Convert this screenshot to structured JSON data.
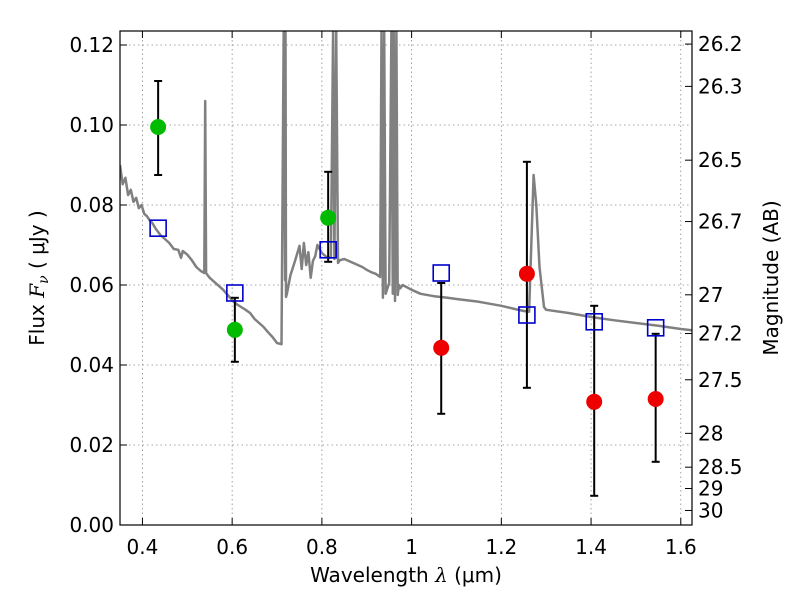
{
  "chart_data": {
    "type": "scatter",
    "title": "",
    "xlabel": {
      "prefix": "Wavelength  ",
      "symbol": "λ",
      "unit": " (μm)"
    },
    "ylabel": {
      "prefix": "Flux  ",
      "symbol": "F",
      "subscript": "ν",
      "unit": "  ( μJy )"
    },
    "y2label": "Magnitude (AB)",
    "xlim": [
      0.35,
      1.625
    ],
    "ylim": [
      0.0,
      0.1235
    ],
    "grid": true,
    "x_ticks": [
      {
        "value": 0.4,
        "label": "0.4"
      },
      {
        "value": 0.6,
        "label": "0.6"
      },
      {
        "value": 0.8,
        "label": "0.8"
      },
      {
        "value": 1.0,
        "label": "1"
      },
      {
        "value": 1.2,
        "label": "1.2"
      },
      {
        "value": 1.4,
        "label": "1.4"
      },
      {
        "value": 1.6,
        "label": "1.6"
      }
    ],
    "y_ticks": [
      {
        "value": 0.0,
        "label": "0.00"
      },
      {
        "value": 0.02,
        "label": "0.02"
      },
      {
        "value": 0.04,
        "label": "0.04"
      },
      {
        "value": 0.06,
        "label": "0.06"
      },
      {
        "value": 0.08,
        "label": "0.08"
      },
      {
        "value": 0.1,
        "label": "0.10"
      },
      {
        "value": 0.12,
        "label": "0.12"
      }
    ],
    "y2_ticks": [
      "26.2",
      "26.3",
      "26.5",
      "26.7",
      "27",
      "27.2",
      "27.5",
      "28",
      "28.5",
      "29",
      "30"
    ],
    "colors": {
      "model": "#808080",
      "green_points": "#00bb00",
      "red_points": "#ee0000",
      "model_boxes": "#0000cc",
      "error_bars": "#000000",
      "grid": "#8a8a8a"
    },
    "series": [
      {
        "kind": "measured-optical",
        "marker": "circle",
        "x": [
          0.435,
          0.606,
          0.814
        ],
        "y": [
          0.0995,
          0.0488,
          0.0768
        ],
        "yerr_low": [
          0.0875,
          0.0408,
          0.0658
        ],
        "yerr_high": [
          0.111,
          0.0568,
          0.0883
        ]
      },
      {
        "kind": "measured-nir",
        "marker": "circle",
        "x": [
          1.066,
          1.257,
          1.407,
          1.544
        ],
        "y": [
          0.0443,
          0.0628,
          0.0308,
          0.0315
        ],
        "yerr_low": [
          0.0278,
          0.0343,
          0.0073,
          0.0158
        ],
        "yerr_high": [
          0.0605,
          0.0908,
          0.0548,
          0.0478
        ]
      },
      {
        "kind": "model-photometry",
        "marker": "square",
        "x": [
          0.435,
          0.606,
          0.814,
          1.066,
          1.257,
          1.407,
          1.544
        ],
        "y": [
          0.0742,
          0.058,
          0.0688,
          0.063,
          0.0525,
          0.0508,
          0.0493
        ]
      },
      {
        "kind": "model-spectrum",
        "marker": "line",
        "x": [
          0.35,
          0.356,
          0.362,
          0.368,
          0.374,
          0.38,
          0.386,
          0.392,
          0.398,
          0.404,
          0.41,
          0.416,
          0.422,
          0.43,
          0.44,
          0.45,
          0.46,
          0.47,
          0.48,
          0.486,
          0.49,
          0.5,
          0.51,
          0.52,
          0.53,
          0.538,
          0.54,
          0.542,
          0.545,
          0.55,
          0.56,
          0.57,
          0.58,
          0.59,
          0.6,
          0.61,
          0.62,
          0.63,
          0.64,
          0.65,
          0.66,
          0.67,
          0.68,
          0.69,
          0.7,
          0.71,
          0.715,
          0.718,
          0.719,
          0.72,
          0.722,
          0.73,
          0.74,
          0.75,
          0.755,
          0.76,
          0.765,
          0.77,
          0.775,
          0.78,
          0.785,
          0.79,
          0.8,
          0.81,
          0.82,
          0.825,
          0.828,
          0.832,
          0.836,
          0.84,
          0.85,
          0.86,
          0.87,
          0.88,
          0.89,
          0.9,
          0.91,
          0.92,
          0.93,
          0.933,
          0.936,
          0.939,
          0.942,
          0.95,
          0.955,
          0.958,
          0.96,
          0.963,
          0.966,
          0.969,
          0.972,
          0.975,
          0.98,
          1.0,
          1.02,
          1.05,
          1.08,
          1.1,
          1.15,
          1.2,
          1.23,
          1.25,
          1.262,
          1.272,
          1.278,
          1.285,
          1.295,
          1.3,
          1.35,
          1.4,
          1.45,
          1.5,
          1.55,
          1.6,
          1.625
        ],
        "y": [
          0.09,
          0.0852,
          0.0868,
          0.0825,
          0.0838,
          0.0808,
          0.0818,
          0.0792,
          0.08,
          0.0778,
          0.0772,
          0.0762,
          0.0755,
          0.074,
          0.0725,
          0.0715,
          0.0705,
          0.069,
          0.0688,
          0.0668,
          0.0685,
          0.0676,
          0.0662,
          0.0645,
          0.0635,
          0.063,
          0.106,
          0.063,
          0.0625,
          0.0618,
          0.0608,
          0.0598,
          0.0588,
          0.0575,
          0.0562,
          0.0552,
          0.0545,
          0.0538,
          0.053,
          0.0515,
          0.0505,
          0.0495,
          0.0482,
          0.047,
          0.0455,
          0.0452,
          0.1235,
          0.0612,
          0.1235,
          0.057,
          0.0578,
          0.0625,
          0.066,
          0.0698,
          0.064,
          0.0705,
          0.065,
          0.0682,
          0.0618,
          0.066,
          0.0672,
          0.07,
          0.068,
          0.067,
          0.0668,
          0.1235,
          0.0665,
          0.1235,
          0.0655,
          0.0662,
          0.0665,
          0.066,
          0.0655,
          0.065,
          0.0645,
          0.0638,
          0.0632,
          0.0628,
          0.062,
          0.1235,
          0.0568,
          0.1235,
          0.0578,
          0.0605,
          0.1235,
          0.0578,
          0.1235,
          0.056,
          0.1235,
          0.0575,
          0.06,
          0.0592,
          0.06,
          0.0588,
          0.0578,
          0.0572,
          0.0568,
          0.0565,
          0.0558,
          0.0548,
          0.054,
          0.0535,
          0.0533,
          0.0875,
          0.08,
          0.0645,
          0.0545,
          0.0538,
          0.053,
          0.052,
          0.0512,
          0.0505,
          0.0498,
          0.049,
          0.0487
        ]
      }
    ]
  }
}
